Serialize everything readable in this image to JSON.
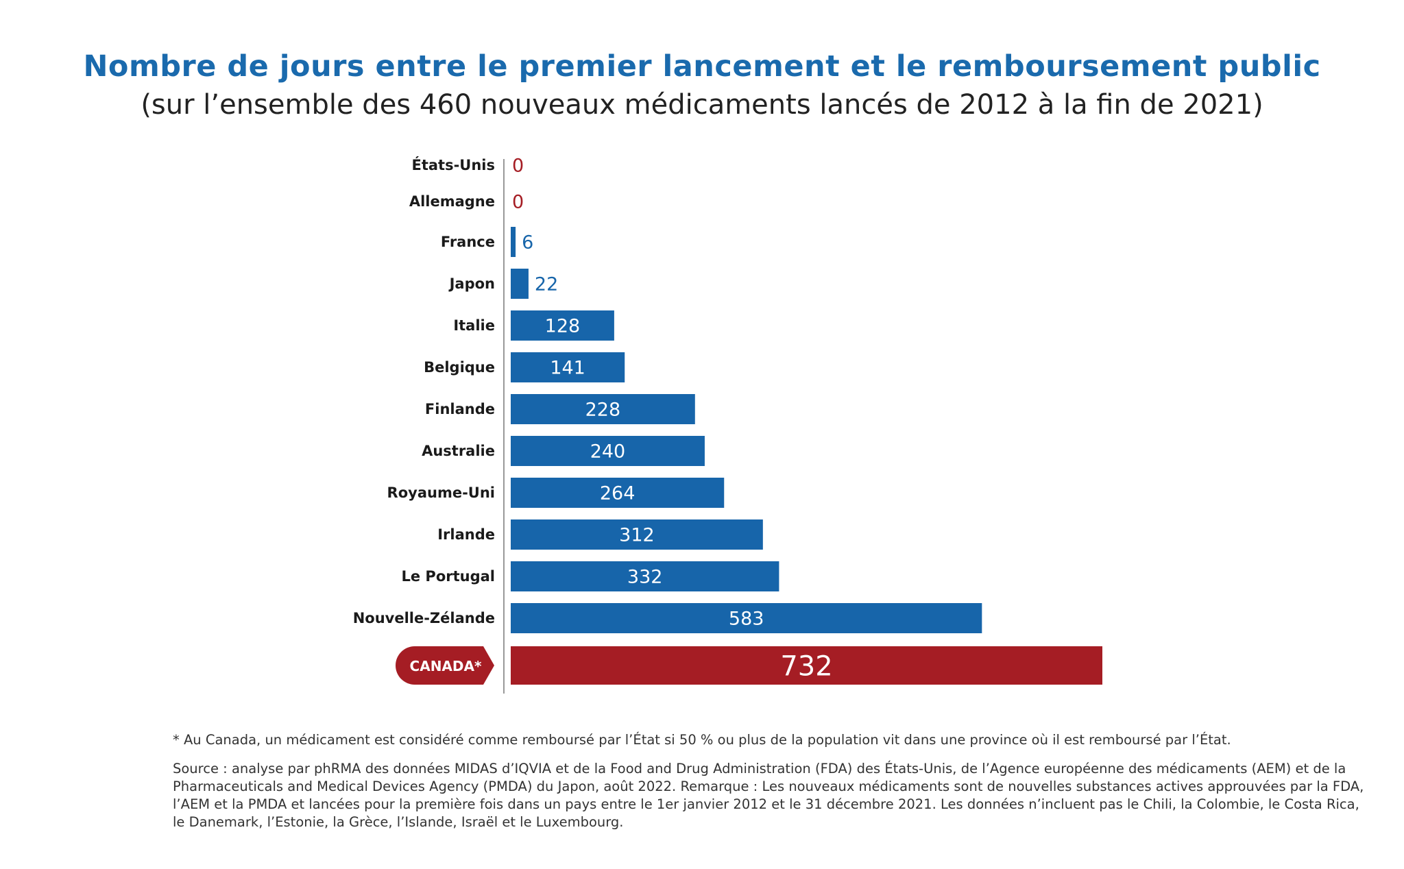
{
  "title": "Nombre de jours entre le premier lancement et le remboursement public",
  "subtitle": "(sur l’ensemble des 460 nouveaux médicaments lancés de 2012 à la fin de 2021)",
  "colors": {
    "bar": "#1765aa",
    "highlight": "#a51d24",
    "title": "#1a6aad",
    "axis": "#999999"
  },
  "chart_data": {
    "type": "bar",
    "orientation": "horizontal",
    "categories": [
      "États-Unis",
      "Allemagne",
      "France",
      "Japon",
      "Italie",
      "Belgique",
      "Finlande",
      "Australie",
      "Royaume-Uni",
      "Irlande",
      "Le Portugal",
      "Nouvelle-Zélande",
      "CANADA*"
    ],
    "values": [
      0,
      0,
      6,
      22,
      128,
      141,
      228,
      240,
      264,
      312,
      332,
      583,
      732
    ],
    "highlight_category": "CANADA*",
    "xlim": [
      0,
      732
    ],
    "grid": false,
    "data_labels": true
  },
  "footnote": "* Au Canada, un médicament est considéré comme remboursé par l’État si 50 % ou plus de la population vit dans une province où il est remboursé par l’État.",
  "source": "Source : analyse par phRMA des données MIDAS d’IQVIA et de la Food and Drug Administration (FDA) des États-Unis, de l’Agence européenne des médicaments (AEM) et de la Pharmaceuticals and Medical Devices Agency (PMDA) du Japon, août 2022. Remarque : Les nouveaux médicaments sont de nouvelles substances actives approuvées par la FDA, l’AEM et la PMDA et lancées pour la première fois dans un pays entre le 1er janvier 2012 et le 31 décembre 2021. Les données n’incluent pas le Chili, la Colombie, le Costa Rica, le Danemark, l’Estonie, la Grèce, l’Islande, Israël et le Luxembourg."
}
